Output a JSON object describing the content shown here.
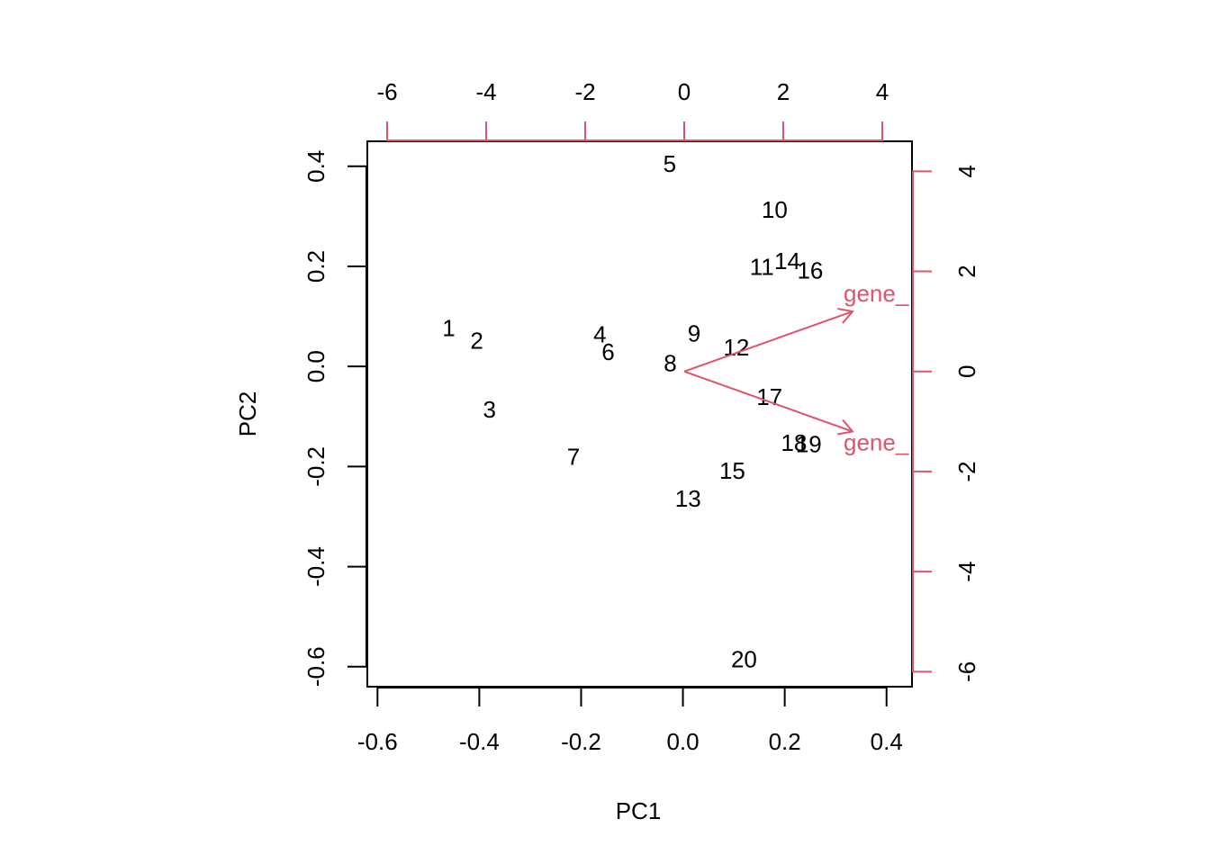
{
  "chart_data": {
    "type": "scatter",
    "title": "",
    "xlabel": "PC1",
    "ylabel": "PC2",
    "xlim": [
      -0.62,
      0.45
    ],
    "ylim": [
      -0.64,
      0.45
    ],
    "x_ticks": [
      -0.6,
      -0.4,
      -0.2,
      0.0,
      0.2,
      0.4
    ],
    "x_tick_labels": [
      "-0.6",
      "-0.4",
      "-0.2",
      "0.0",
      "0.2",
      "0.4"
    ],
    "y_ticks": [
      0.4,
      0.2,
      0.0,
      -0.2,
      -0.4,
      -0.6
    ],
    "y_tick_labels": [
      "0.4",
      "0.2",
      "0.0",
      "-0.2",
      "-0.4",
      "-0.6"
    ],
    "secondary_axes": {
      "color": "#DF536B",
      "top_ticks": [
        -6,
        -4,
        -2,
        0,
        2,
        4
      ],
      "top_tick_labels": [
        "-6",
        "-4",
        "-2",
        "0",
        "2",
        "4"
      ],
      "right_ticks": [
        4,
        2,
        0,
        -2,
        -4,
        -6
      ],
      "right_tick_labels": [
        "4",
        "2",
        "0",
        "-2",
        "-4",
        "-6"
      ],
      "xlim": [
        -6.4,
        4.6
      ],
      "ylim": [
        -6.3,
        4.6
      ]
    },
    "grid": false,
    "legend": "none",
    "points": [
      {
        "label": "1",
        "x": -0.46,
        "y": 0.077
      },
      {
        "label": "2",
        "x": -0.405,
        "y": 0.052
      },
      {
        "label": "3",
        "x": -0.38,
        "y": -0.086
      },
      {
        "label": "4",
        "x": -0.163,
        "y": 0.064
      },
      {
        "label": "5",
        "x": -0.026,
        "y": 0.405
      },
      {
        "label": "6",
        "x": -0.147,
        "y": 0.029
      },
      {
        "label": "7",
        "x": -0.215,
        "y": -0.18
      },
      {
        "label": "8",
        "x": -0.025,
        "y": 0.007
      },
      {
        "label": "9",
        "x": 0.022,
        "y": 0.066
      },
      {
        "label": "10",
        "x": 0.18,
        "y": 0.313
      },
      {
        "label": "11",
        "x": 0.155,
        "y": 0.199
      },
      {
        "label": "12",
        "x": 0.105,
        "y": 0.038
      },
      {
        "label": "13",
        "x": 0.01,
        "y": -0.264
      },
      {
        "label": "14",
        "x": 0.205,
        "y": 0.211
      },
      {
        "label": "15",
        "x": 0.097,
        "y": -0.208
      },
      {
        "label": "16",
        "x": 0.25,
        "y": 0.192
      },
      {
        "label": "17",
        "x": 0.17,
        "y": -0.061
      },
      {
        "label": "18",
        "x": 0.218,
        "y": -0.153
      },
      {
        "label": "19",
        "x": 0.247,
        "y": -0.155
      },
      {
        "label": "20",
        "x": 0.12,
        "y": -0.585
      }
    ],
    "loadings": [
      {
        "label": "gene_",
        "x": 3.4,
        "y": 1.2
      },
      {
        "label": "gene_",
        "x": 3.4,
        "y": -1.2
      }
    ]
  }
}
